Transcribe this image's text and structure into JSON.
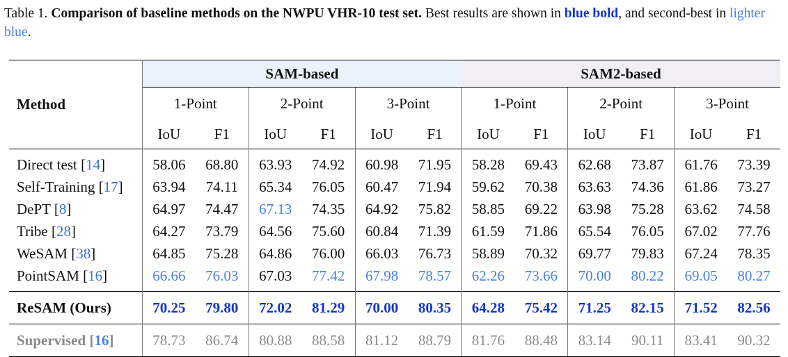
{
  "caption": {
    "prefix": "Table 1.",
    "lead": "Comparison of baseline methods on the NWPU VHR-10 test set.",
    "text1": "Best results are shown in",
    "best_label": "blue bold",
    "text2": ", and second-best in",
    "second_label": "lighter blue",
    "text3": "."
  },
  "header": {
    "method": "Method",
    "groups": [
      "SAM-based",
      "SAM2-based"
    ],
    "points": [
      "1-Point",
      "2-Point",
      "3-Point",
      "1-Point",
      "2-Point",
      "3-Point"
    ],
    "metrics": [
      "IoU",
      "F1",
      "IoU",
      "F1",
      "IoU",
      "F1",
      "IoU",
      "F1",
      "IoU",
      "F1",
      "IoU",
      "F1"
    ]
  },
  "rows": [
    {
      "name": "Direct test",
      "ref": "14",
      "values": [
        "58.06",
        "68.80",
        "63.93",
        "74.92",
        "60.98",
        "71.95",
        "58.28",
        "69.43",
        "62.68",
        "73.87",
        "61.76",
        "73.39"
      ],
      "styles": [
        "",
        "",
        "",
        "",
        "",
        "",
        "",
        "",
        "",
        "",
        "",
        ""
      ]
    },
    {
      "name": "Self-Training",
      "ref": "17",
      "values": [
        "63.94",
        "74.11",
        "65.34",
        "76.05",
        "60.47",
        "71.94",
        "59.62",
        "70.38",
        "63.63",
        "74.36",
        "61.86",
        "73.27"
      ],
      "styles": [
        "",
        "",
        "",
        "",
        "",
        "",
        "",
        "",
        "",
        "",
        "",
        ""
      ]
    },
    {
      "name": "DePT",
      "ref": "8",
      "values": [
        "64.97",
        "74.47",
        "67.13",
        "74.35",
        "64.92",
        "75.82",
        "58.85",
        "69.22",
        "63.98",
        "75.28",
        "63.62",
        "74.58"
      ],
      "styles": [
        "",
        "",
        "s",
        "",
        "",
        "",
        "",
        "",
        "",
        "",
        "",
        ""
      ]
    },
    {
      "name": "Tribe",
      "ref": "28",
      "values": [
        "64.27",
        "73.79",
        "64.56",
        "75.60",
        "60.84",
        "71.39",
        "61.59",
        "71.86",
        "65.54",
        "76.05",
        "67.02",
        "77.76"
      ],
      "styles": [
        "",
        "",
        "",
        "",
        "",
        "",
        "",
        "",
        "",
        "",
        "",
        ""
      ]
    },
    {
      "name": "WeSAM",
      "ref": "38",
      "values": [
        "64.85",
        "75.28",
        "64.86",
        "76.00",
        "66.03",
        "76.73",
        "58.89",
        "70.32",
        "69.77",
        "79.83",
        "67.24",
        "78.35"
      ],
      "styles": [
        "",
        "",
        "",
        "",
        "",
        "",
        "",
        "",
        "",
        "",
        "",
        ""
      ]
    },
    {
      "name": "PointSAM",
      "ref": "16",
      "values": [
        "66.66",
        "76.03",
        "67.03",
        "77.42",
        "67.98",
        "78.57",
        "62.26",
        "73.66",
        "70.00",
        "80.22",
        "69.05",
        "80.27"
      ],
      "styles": [
        "s",
        "s",
        "",
        "s",
        "s",
        "s",
        "s",
        "s",
        "s",
        "s",
        "s",
        "s"
      ]
    }
  ],
  "ours": {
    "name": "ReSAM (Ours)",
    "values": [
      "70.25",
      "79.80",
      "72.02",
      "81.29",
      "70.00",
      "80.35",
      "64.28",
      "75.42",
      "71.25",
      "82.15",
      "71.52",
      "82.56"
    ]
  },
  "supervised": {
    "name": "Supervised",
    "ref": "16",
    "values": [
      "78.73",
      "86.74",
      "80.88",
      "88.58",
      "81.12",
      "88.79",
      "81.76",
      "88.48",
      "83.14",
      "90.11",
      "83.41",
      "90.32"
    ]
  }
}
